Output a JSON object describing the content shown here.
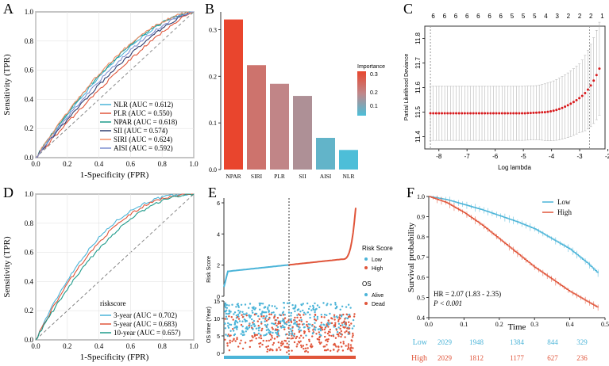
{
  "panels": {
    "A": {
      "letter": "A",
      "chart_data": {
        "type": "line",
        "xlabel": "1-Specificity (FPR)",
        "ylabel": "Sensitivity (TPR)",
        "xlim": [
          0,
          1
        ],
        "ylim": [
          0,
          1
        ],
        "ticks": [
          "0.0",
          "0.2",
          "0.4",
          "0.6",
          "0.8",
          "1.0"
        ],
        "legend_position": "bottom-right",
        "series": [
          {
            "name": "NLR (AUC = 0.612)",
            "auc": 0.612,
            "color": "#4bb4d8"
          },
          {
            "name": "PLR (AUC = 0.550)",
            "auc": 0.55,
            "color": "#e0553a"
          },
          {
            "name": "NPAR (AUC = 0.618)",
            "auc": 0.618,
            "color": "#1e9a8a"
          },
          {
            "name": "SII (AUC = 0.574)",
            "auc": 0.574,
            "color": "#2f3d6e"
          },
          {
            "name": "SIRI (AUC = 0.624)",
            "auc": 0.624,
            "color": "#f28c63"
          },
          {
            "name": "AISI (AUC = 0.592)",
            "auc": 0.592,
            "color": "#7e8fd0"
          }
        ]
      }
    },
    "B": {
      "letter": "B",
      "chart_data": {
        "type": "bar",
        "categories": [
          "NPAR",
          "SIRI",
          "PLR",
          "SII",
          "AISI",
          "NLR"
        ],
        "values": [
          0.322,
          0.224,
          0.184,
          0.158,
          0.068,
          0.042
        ],
        "ylim": [
          0,
          0.34
        ],
        "yticks": [
          "0.0",
          "0.1",
          "0.2",
          "0.3"
        ],
        "legend_title": "Importance",
        "legend_ticks": [
          "0.3",
          "0.2",
          "0.1"
        ],
        "color_low": "#4bbfd9",
        "color_high": "#e8462e"
      }
    },
    "C": {
      "letter": "C",
      "chart_data": {
        "type": "scatter",
        "xlabel": "Log lambda",
        "ylabel": "Partial Likelihood Deviance",
        "xlim": [
          -8.5,
          -2.1
        ],
        "ylim": [
          11.35,
          11.85
        ],
        "xticks": [
          "-8",
          "-7",
          "-6",
          "-5",
          "-4",
          "-3",
          "-2"
        ],
        "yticks": [
          "11.4",
          "11.5",
          "11.6",
          "11.7",
          "11.8"
        ],
        "top_counts": [
          "6",
          "6",
          "6",
          "6",
          "6",
          "6",
          "6",
          "5",
          "5",
          "5",
          "4",
          "3",
          "2",
          "2",
          "2",
          "1"
        ],
        "lambda_min": -8.3,
        "lambda_1se": -2.65,
        "point_color": "#d7191c"
      }
    },
    "D": {
      "letter": "D",
      "chart_data": {
        "type": "line",
        "xlabel": "1-Specificity (FPR)",
        "ylabel": "Sensitivity (TPR)",
        "xlim": [
          0,
          1
        ],
        "ylim": [
          0,
          1
        ],
        "ticks": [
          "0.0",
          "0.2",
          "0.4",
          "0.6",
          "0.8",
          "1.0"
        ],
        "legend_title": "riskscore",
        "legend_position": "bottom-right",
        "series": [
          {
            "name": "3-year (AUC = 0.702)",
            "auc": 0.702,
            "color": "#4bb4d8"
          },
          {
            "name": "5-year (AUC = 0.683)",
            "auc": 0.683,
            "color": "#e0553a"
          },
          {
            "name": "10-year (AUC = 0.657)",
            "auc": 0.657,
            "color": "#1e9a8a"
          }
        ]
      }
    },
    "E": {
      "letter": "E",
      "chart_data": {
        "type": "scatter",
        "top": {
          "ylabel": "Risk Score",
          "ylim": [
            0,
            6
          ],
          "yticks": [
            "0",
            "2",
            "4",
            "6"
          ],
          "legend_title": "Risk Score",
          "legend": [
            "Low",
            "High"
          ]
        },
        "bottom": {
          "ylabel": "OS time (Year)",
          "ylim": [
            0,
            15
          ],
          "yticks": [
            "0",
            "5",
            "10",
            "15"
          ],
          "legend_title": "OS",
          "legend": [
            "Alive",
            "Dead"
          ]
        },
        "low_color": "#4bb4d8",
        "high_color": "#e0553a",
        "cutoff_fraction": 0.5
      }
    },
    "F": {
      "letter": "F",
      "chart_data": {
        "type": "line",
        "xlabel": "Time",
        "ylabel": "Survival probability",
        "xlim": [
          0,
          0.5
        ],
        "ylim": [
          0.4,
          1.0
        ],
        "xticks": [
          "0.0",
          "0.1",
          "0.2",
          "0.3",
          "0.4",
          "0.5"
        ],
        "yticks": [
          "0.4",
          "0.5",
          "0.6",
          "0.7",
          "0.8",
          "0.9",
          "1.0"
        ],
        "series": [
          {
            "name": "Low",
            "color": "#4bb4d8",
            "x": [
              0,
              0.05,
              0.1,
              0.15,
              0.2,
              0.25,
              0.3,
              0.35,
              0.4,
              0.45,
              0.48
            ],
            "y": [
              1.0,
              0.985,
              0.96,
              0.935,
              0.905,
              0.875,
              0.84,
              0.79,
              0.74,
              0.67,
              0.62
            ]
          },
          {
            "name": "High",
            "color": "#e0553a",
            "x": [
              0,
              0.05,
              0.1,
              0.15,
              0.2,
              0.25,
              0.3,
              0.35,
              0.4,
              0.45,
              0.48
            ],
            "y": [
              1.0,
              0.97,
              0.92,
              0.86,
              0.79,
              0.72,
              0.65,
              0.59,
              0.53,
              0.48,
              0.45
            ]
          }
        ],
        "annotation_hr": "HR = 2.07 (1.83 - 2.35)",
        "annotation_p": "P < 0.001",
        "risk_table": {
          "times": [
            0.0,
            0.1,
            0.2,
            0.25,
            0.4
          ],
          "rows": [
            {
              "label": "Low",
              "color": "#4bb4d8",
              "counts": [
                "2029",
                "1948",
                "1384",
                "844",
                "329"
              ]
            },
            {
              "label": "High",
              "color": "#e0553a",
              "counts": [
                "2029",
                "1812",
                "1177",
                "627",
                "236"
              ]
            }
          ]
        }
      }
    }
  }
}
